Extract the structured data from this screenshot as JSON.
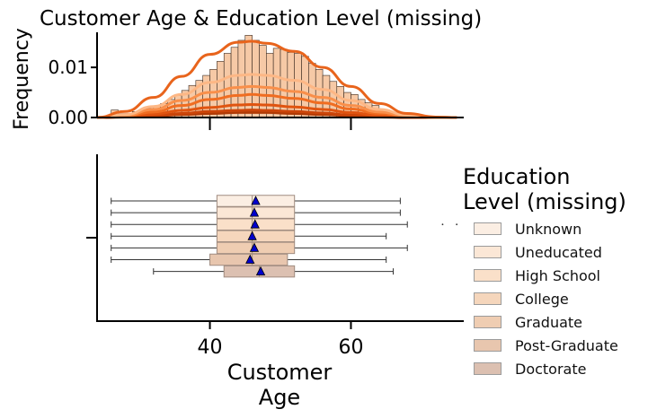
{
  "chart_data": {
    "type": "histogram+boxplot",
    "title": "Customer Age & Education Level (missing)",
    "top_panel": {
      "ylabel": "Frequency",
      "yticks": [
        "0.00",
        "0.01"
      ],
      "ylim": [
        0,
        0.017
      ],
      "hist_bins_x": [
        26,
        27,
        28,
        29,
        30,
        31,
        32,
        33,
        34,
        35,
        36,
        37,
        38,
        39,
        40,
        41,
        42,
        43,
        44,
        45,
        46,
        47,
        48,
        49,
        50,
        51,
        52,
        53,
        54,
        55,
        56,
        57,
        58,
        59,
        60,
        61,
        62,
        63,
        64,
        65,
        66,
        67,
        68
      ],
      "hist_values": [
        0.0015,
        0.0008,
        0.0008,
        0.0012,
        0.0014,
        0.0018,
        0.0022,
        0.0028,
        0.0036,
        0.0044,
        0.0054,
        0.0064,
        0.0074,
        0.0084,
        0.0096,
        0.0112,
        0.0128,
        0.014,
        0.0154,
        0.0164,
        0.0154,
        0.0144,
        0.0128,
        0.0138,
        0.0136,
        0.013,
        0.0128,
        0.0122,
        0.0108,
        0.0096,
        0.0084,
        0.0072,
        0.0062,
        0.005,
        0.0046,
        0.0036,
        0.003,
        0.0024,
        0.0016,
        0.0012,
        0.0008,
        0.0006,
        0.0004
      ],
      "kde_x": [
        24,
        28,
        32,
        36,
        40,
        44,
        46,
        48,
        52,
        56,
        60,
        64,
        68,
        72,
        75
      ],
      "kde_curves": [
        {
          "color": "#e8641c",
          "values": [
            0,
            0.0012,
            0.004,
            0.0082,
            0.0126,
            0.015,
            0.0152,
            0.0148,
            0.0132,
            0.01,
            0.0062,
            0.0028,
            0.0008,
            0.0001,
            0
          ]
        },
        {
          "color": "#fdb785",
          "values": [
            0,
            0.0006,
            0.0022,
            0.0046,
            0.007,
            0.0084,
            0.0086,
            0.0084,
            0.0074,
            0.0056,
            0.0034,
            0.0016,
            0.0005,
            0.0001,
            0
          ]
        },
        {
          "color": "#f98f4a",
          "values": [
            0,
            0.0004,
            0.0016,
            0.0034,
            0.005,
            0.006,
            0.0062,
            0.006,
            0.0052,
            0.004,
            0.0024,
            0.0011,
            0.0003,
            0,
            0
          ]
        },
        {
          "color": "#f06d21",
          "values": [
            0,
            0.0003,
            0.0011,
            0.0024,
            0.0036,
            0.0044,
            0.0046,
            0.0044,
            0.0038,
            0.0029,
            0.0017,
            0.0008,
            0.0002,
            0,
            0
          ]
        },
        {
          "color": "#e05410",
          "values": [
            0,
            0.0002,
            0.0007,
            0.0014,
            0.002,
            0.0025,
            0.0026,
            0.0025,
            0.0021,
            0.0016,
            0.001,
            0.0004,
            0.0001,
            0,
            0
          ]
        },
        {
          "color": "#cc4509",
          "values": [
            0,
            0.0001,
            0.0004,
            0.0008,
            0.0012,
            0.0014,
            0.0015,
            0.0014,
            0.0012,
            0.0009,
            0.0005,
            0.0002,
            0,
            0,
            0
          ]
        },
        {
          "color": "#b03a05",
          "values": [
            0,
            0.0001,
            0.0003,
            0.0006,
            0.0008,
            0.001,
            0.001,
            0.001,
            0.0008,
            0.0006,
            0.0004,
            0.0001,
            0,
            0,
            0
          ]
        }
      ]
    },
    "bottom_panel": {
      "type": "boxplot",
      "xlabel": "Customer\nAge",
      "xticks": [
        "40",
        "60"
      ],
      "xtick_values": [
        40,
        60
      ],
      "xlim": [
        24,
        76
      ],
      "series": [
        {
          "name": "Unknown",
          "whisker_low": 26,
          "q1": 41,
          "median": 46,
          "q3": 52,
          "whisker_high": 67,
          "mean": 46.5,
          "outliers": [],
          "color": "#fbeee3"
        },
        {
          "name": "Uneducated",
          "whisker_low": 26,
          "q1": 41,
          "median": 46,
          "q3": 52,
          "whisker_high": 67,
          "mean": 46.3,
          "outliers": [],
          "color": "#fbe7d6"
        },
        {
          "name": "High School",
          "whisker_low": 26,
          "q1": 41,
          "median": 46,
          "q3": 52,
          "whisker_high": 68,
          "mean": 46.4,
          "outliers": [
            73,
            75
          ],
          "color": "#fae0c9"
        },
        {
          "name": "College",
          "whisker_low": 26,
          "q1": 41,
          "median": 46,
          "q3": 52,
          "whisker_high": 65,
          "mean": 46.0,
          "outliers": [],
          "color": "#f5d6bc"
        },
        {
          "name": "Graduate",
          "whisker_low": 26,
          "q1": 41,
          "median": 46,
          "q3": 52,
          "whisker_high": 68,
          "mean": 46.3,
          "outliers": [],
          "color": "#efcdb2"
        },
        {
          "name": "Post-Graduate",
          "whisker_low": 26,
          "q1": 40,
          "median": 46,
          "q3": 51,
          "whisker_high": 65,
          "mean": 45.7,
          "outliers": [],
          "color": "#e8c6ae"
        },
        {
          "name": "Doctorate",
          "whisker_low": 32,
          "q1": 42,
          "median": 47,
          "q3": 52,
          "whisker_high": 66,
          "mean": 47.2,
          "outliers": [],
          "color": "#dcc0b1"
        }
      ]
    },
    "legend": {
      "title": "Education\nLevel (missing)",
      "placement": "right",
      "entries": [
        "Unknown",
        "Uneducated",
        "High School",
        "College",
        "Graduate",
        "Post-Graduate",
        "Doctorate"
      ]
    }
  }
}
